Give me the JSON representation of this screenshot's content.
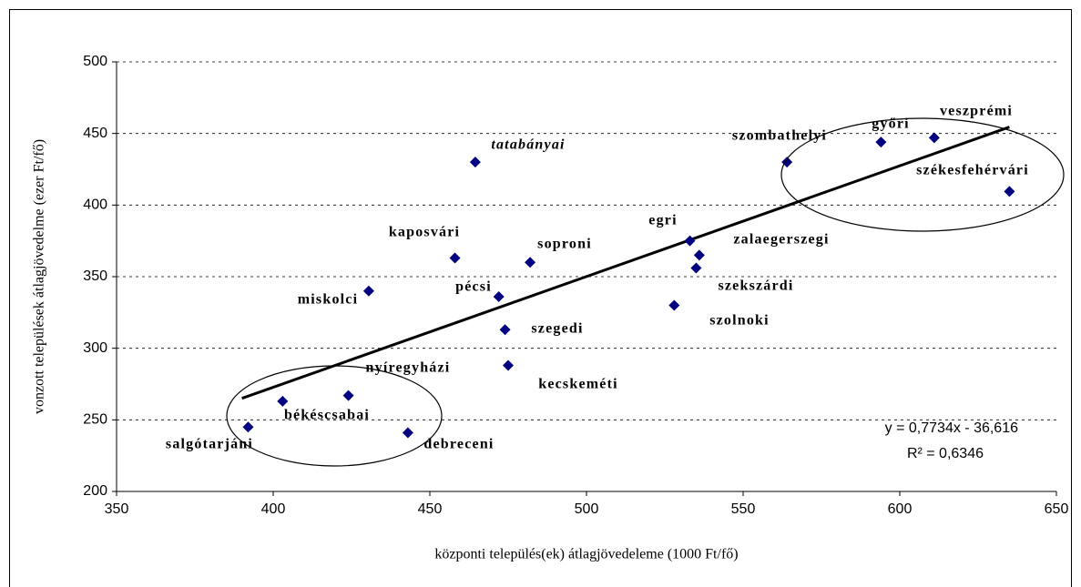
{
  "chart_data": {
    "type": "scatter",
    "x_label": "központi település(ek) átlagjövedeleme (1000 Ft/fő)",
    "y_label": "vonzott települések átlagjövedelme (ezer Ft/fő)",
    "xlim": [
      350,
      650
    ],
    "xticks": [
      350,
      400,
      450,
      500,
      550,
      600,
      650
    ],
    "ylim": [
      200,
      500
    ],
    "yticks": [
      200,
      250,
      300,
      350,
      400,
      450,
      500
    ],
    "grid": true,
    "color": "#000080",
    "labels": [
      "veszprémi",
      "győri",
      "szombathelyi",
      "székesfehérvári",
      "tatabányai",
      "egri",
      "zalaegerszegi",
      "szekszárdi",
      "szolnoki",
      "kaposvári",
      "soproni",
      "pécsi",
      "szegedi",
      "kecskeméti",
      "miskolci",
      "nyíregyházi",
      "békéscsabai",
      "debreceni",
      "salgótarjáni"
    ],
    "x": [
      611,
      594,
      564,
      635,
      464.5,
      533,
      536,
      535,
      528,
      458,
      482,
      472,
      474,
      475,
      430.5,
      424,
      403,
      443,
      392
    ],
    "values": [
      447,
      444,
      430,
      409.5,
      430,
      375,
      365,
      356,
      330,
      363,
      360,
      336,
      313,
      288,
      340,
      267,
      263,
      241,
      245
    ],
    "trendline": {
      "slope": 0.7734,
      "intercept": -36.616,
      "x_range": [
        390,
        635
      ],
      "equation": "y = 0,7734x - 36,616",
      "r2": "R² = 0,6346"
    }
  }
}
